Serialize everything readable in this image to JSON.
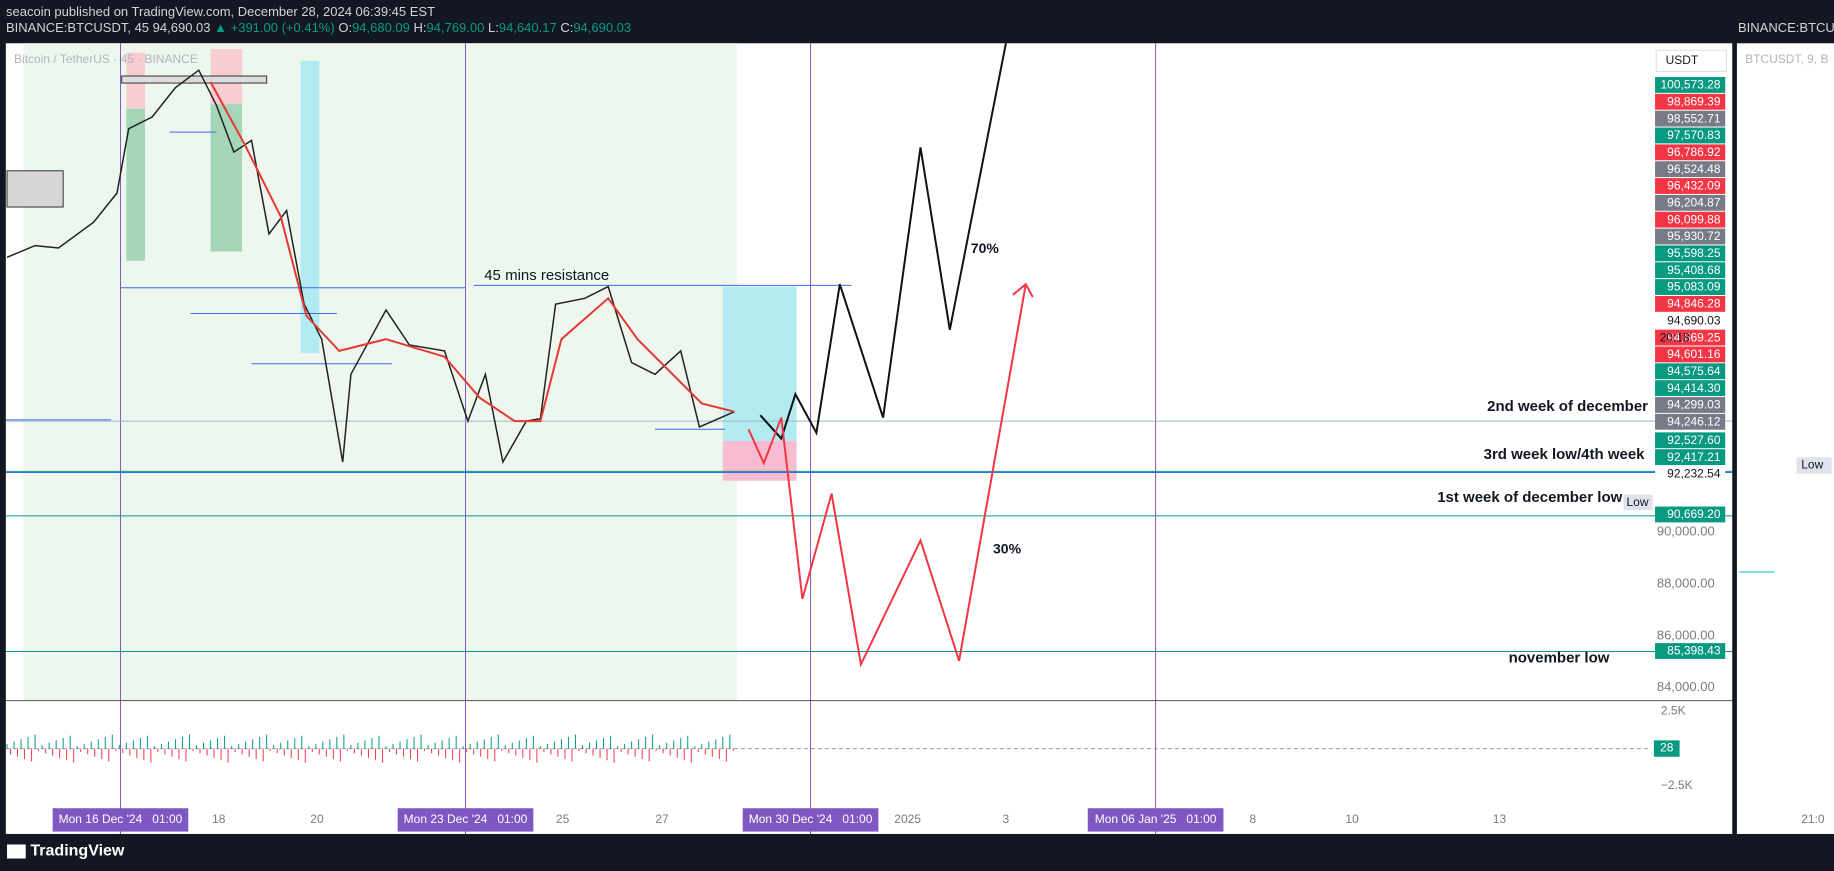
{
  "header": {
    "publisher": "seacoin published on TradingView.com, December 28, 2024 06:39:45 EST",
    "symbol": "BINANCE:BTCUSDT, 45",
    "price": "94,690.03",
    "change": "▲ +391.00 (+0.41%)",
    "ohlc": [
      {
        "label": "O:",
        "value": "94,680.09"
      },
      {
        "label": "H:",
        "value": "94,769.00"
      },
      {
        "label": "L:",
        "value": "94,640.17"
      },
      {
        "label": "C:",
        "value": "94,690.03"
      }
    ],
    "right_symbol": "BINANCE:BTCUS"
  },
  "chart": {
    "legend": "Bitcoin / TetherUS · 45 · BINANCE",
    "currency": "USDT",
    "price_ticks": [
      {
        "value": 90000,
        "label": "90,000.00"
      },
      {
        "value": 88000,
        "label": "88,000.00"
      },
      {
        "value": 86000,
        "label": "86,000.00"
      },
      {
        "value": 84000,
        "label": "84,000.00"
      }
    ],
    "price_labels": [
      {
        "value": 100573.28,
        "label": "100,573.28",
        "color": "#089981"
      },
      {
        "value": 98869.39,
        "label": "98,869.39",
        "color": "#f23645"
      },
      {
        "value": 98552.71,
        "label": "98,552.71",
        "color": "#787b86"
      },
      {
        "value": 97570.83,
        "label": "97,570.83",
        "color": "#089981"
      },
      {
        "value": 96786.92,
        "label": "96,786.92",
        "color": "#f23645"
      },
      {
        "value": 96524.48,
        "label": "96,524.48",
        "color": "#787b86"
      },
      {
        "value": 96432.09,
        "label": "96,432.09",
        "color": "#f23645"
      },
      {
        "value": 96204.87,
        "label": "96,204.87",
        "color": "#787b86"
      },
      {
        "value": 96099.88,
        "label": "96,099.88",
        "color": "#f23645"
      },
      {
        "value": 95930.72,
        "label": "95,930.72",
        "color": "#787b86"
      },
      {
        "value": 95598.25,
        "label": "95,598.25",
        "color": "#089981"
      },
      {
        "value": 95408.68,
        "label": "95,408.68",
        "color": "#089981"
      },
      {
        "value": 95083.09,
        "label": "95,083.09",
        "color": "#089981"
      },
      {
        "value": 94846.28,
        "label": "94,846.28",
        "color": "#f23645"
      },
      {
        "value": 94690.03,
        "label": "94,690.03",
        "color": "#ffffff",
        "sub": "20:18"
      },
      {
        "value": 94669.25,
        "label": "94,669.25",
        "color": "#f23645"
      },
      {
        "value": 94601.16,
        "label": "94,601.16",
        "color": "#f23645"
      },
      {
        "value": 94575.64,
        "label": "94,575.64",
        "color": "#089981"
      },
      {
        "value": 94414.3,
        "label": "94,414.30",
        "color": "#089981"
      },
      {
        "value": 94299.03,
        "label": "94,299.03",
        "color": "#787b86"
      },
      {
        "value": 94246.12,
        "label": "94,246.12",
        "color": "#787b86"
      },
      {
        "value": 92527.6,
        "label": "92,527.60",
        "color": "#089981"
      },
      {
        "value": 92417.21,
        "label": "92,417.21",
        "color": "#089981"
      },
      {
        "value": 92232.54,
        "label": "92,232.54",
        "color": "#ffffff"
      },
      {
        "value": 90669.2,
        "label": "90,669.20",
        "color": "#089981"
      },
      {
        "value": 85398.43,
        "label": "85,398.43",
        "color": "#089981"
      }
    ],
    "volume_ticks": [
      "2.5K",
      "−2.5K"
    ],
    "volume_value": "28",
    "annotations": {
      "resistance": "45 mins resistance",
      "up": "70%",
      "down": "30%",
      "week2": "2nd week of december",
      "week3": "3rd week low/4th week",
      "week1": "1st week of december low",
      "low_tag": "Low",
      "november": "november low"
    },
    "x_labels": [
      "Mon 16 Dec '24   01:00",
      "18",
      "20",
      "Mon 23 Dec '24   01:00",
      "25",
      "27",
      "Mon 30 Dec '24   01:00",
      "2025",
      "3",
      "Mon 06 Jan '25   01:00",
      "8",
      "10",
      "13"
    ]
  },
  "side_panel": {
    "symbol": "BTCUSDT, 9, B",
    "low": "Low",
    "time": "21:0"
  },
  "footer": "TradingView"
}
